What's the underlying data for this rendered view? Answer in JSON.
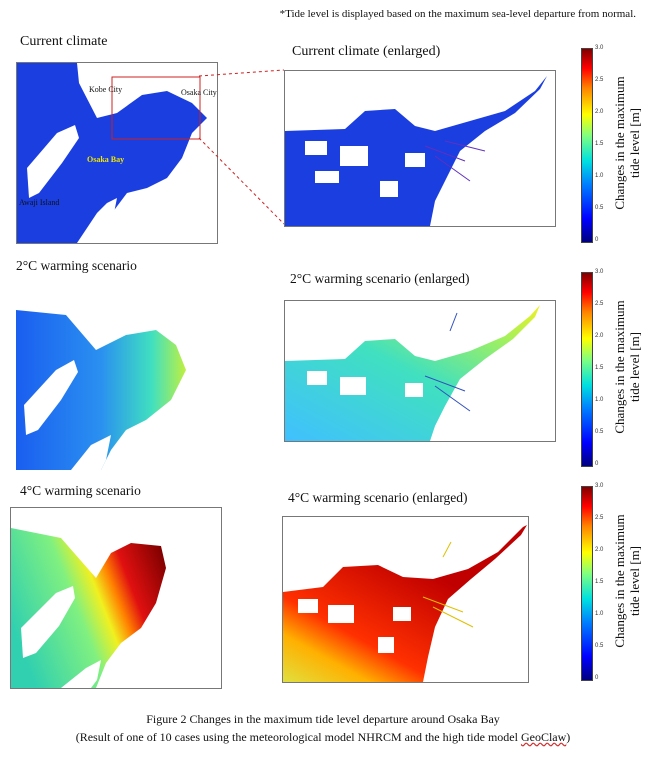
{
  "note": "*Tide level is displayed based on the maximum sea-level departure from normal.",
  "panels": {
    "current": "Current climate",
    "current_enlarged": "Current climate (enlarged)",
    "w2": "2°C warming scenario",
    "w2_enlarged": "2°C warming scenario (enlarged)",
    "w4": "4°C warming scenario",
    "w4_enlarged": "4°C warming scenario (enlarged)"
  },
  "map_labels": {
    "kobe": "Kobe City",
    "osaka": "Osaka City",
    "bay": "Osaka Bay",
    "awaji": "Awaji Island"
  },
  "colorbar": {
    "label_line1": "Changes in the maximum",
    "label_line2": "tide level [m]",
    "ticks": [
      "3.0",
      "2.5",
      "2.0",
      "1.5",
      "1.0",
      "0.5",
      "0"
    ],
    "range": [
      0,
      3.0
    ]
  },
  "caption": {
    "line1": "Figure 2 Changes in the maximum tide level departure around Osaka Bay",
    "line2_prefix": "(Result of one of 10 cases using the meteorological model NHRCM and the high tide model ",
    "line2_model": "GeoClaw",
    "line2_suffix": ")"
  },
  "colors": {
    "current_water": "#1a3ee0",
    "zoom_box": "#cc2222"
  }
}
